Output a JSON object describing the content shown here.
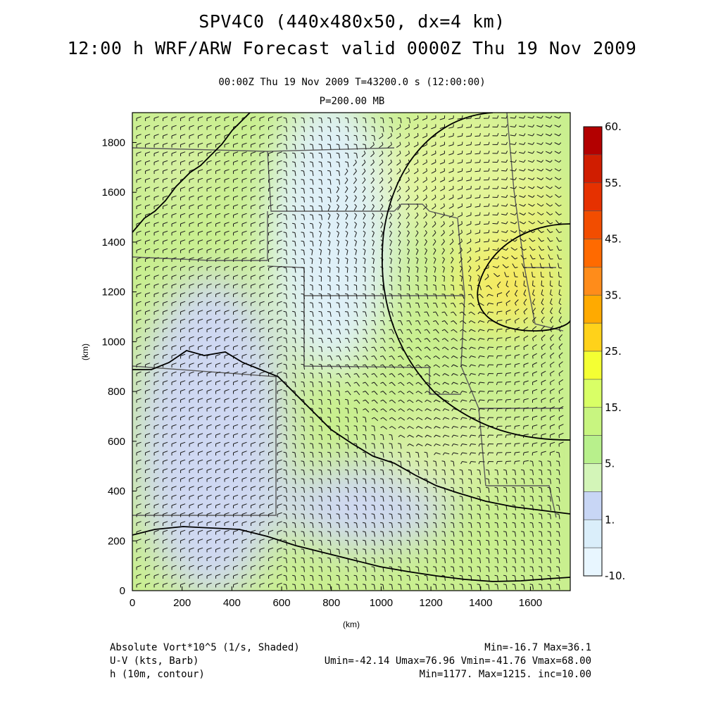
{
  "title": {
    "line1": "SPV4C0 (440x480x50, dx=4 km)",
    "line2": "12:00 h WRF/ARW Forecast valid 0000Z Thu 19 Nov 2009"
  },
  "subtitle": {
    "line1": "00:00Z Thu 19 Nov 2009     T=43200.0 s (12:00:00)",
    "line2": "P=200.00 MB"
  },
  "axes": {
    "xlabel": "(km)",
    "ylabel": "(km)",
    "x_ticks": [
      "0",
      "200",
      "400",
      "600",
      "800",
      "1000",
      "1200",
      "1400",
      "1600"
    ],
    "y_ticks": [
      "0",
      "200",
      "400",
      "600",
      "800",
      "1000",
      "1200",
      "1400",
      "1600",
      "1800"
    ],
    "xlim": [
      0,
      1760
    ],
    "ylim": [
      0,
      1920
    ]
  },
  "colorbar": {
    "labels": [
      "60.",
      "55.",
      "45.",
      "35.",
      "25.",
      "15.",
      "5.",
      "1.",
      "-10."
    ],
    "colors": [
      "#b30000",
      "#d01d00",
      "#e63100",
      "#f24d00",
      "#ff6a00",
      "#ff8c1a",
      "#ffaa00",
      "#ffd21a",
      "#f4ff33",
      "#d9ff66",
      "#c8f580",
      "#b8f08c",
      "#d3f5b8",
      "#c8d6f5",
      "#daeefa",
      "#e8f6ff"
    ]
  },
  "footer": {
    "left1": "Absolute Vort*10^5 (1/s, Shaded)",
    "left2": "U-V (kts, Barb)",
    "left3": "h (10m, contour)",
    "right1": "Min=-16.7 Max=36.1",
    "right2": "Umin=-42.14 Umax=76.96 Vmin=-41.76 Vmax=68.00",
    "right3": "Min=1177. Max=1215. inc=10.00"
  },
  "colors": {
    "contour": "#000000",
    "boundary": "#555555",
    "barb": "#1a1a1a"
  }
}
